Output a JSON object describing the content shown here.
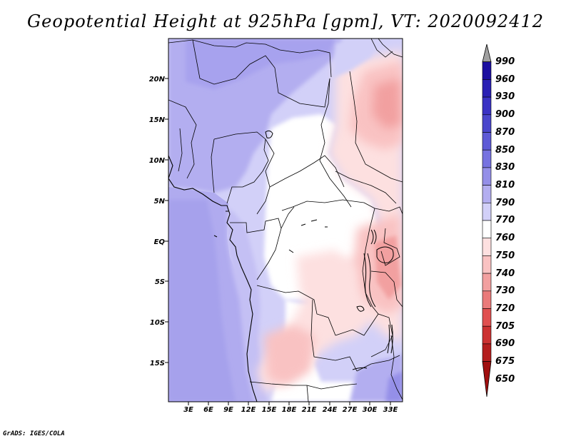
{
  "title": "Geopotential Height at 925hPa [gpm], VT: 2020092412",
  "footer": "GrADS: IGES/COLA",
  "map": {
    "lat_labels": [
      "20N",
      "15N",
      "10N",
      "5N",
      "EQ",
      "5S",
      "10S",
      "15S"
    ],
    "lon_labels": [
      "3E",
      "6E",
      "9E",
      "12E",
      "15E",
      "18E",
      "21E",
      "24E",
      "27E",
      "30E",
      "33E"
    ]
  },
  "colorbar": {
    "levels": [
      "990",
      "960",
      "930",
      "900",
      "870",
      "850",
      "830",
      "810",
      "790",
      "770",
      "760",
      "750",
      "740",
      "730",
      "720",
      "705",
      "690",
      "675",
      "650"
    ],
    "colors": [
      "#a0a0a0",
      "#1c0fa0",
      "#2a20b4",
      "#3a32c4",
      "#4a46cc",
      "#5e5ad6",
      "#7672e0",
      "#948fe8",
      "#b3aef0",
      "#d2d0f8",
      "#ffffff",
      "#fde0e0",
      "#f9c2c2",
      "#f2a0a0",
      "#ea7a7a",
      "#e05050",
      "#cc3232",
      "#b41e1e",
      "#a00f0f"
    ]
  }
}
